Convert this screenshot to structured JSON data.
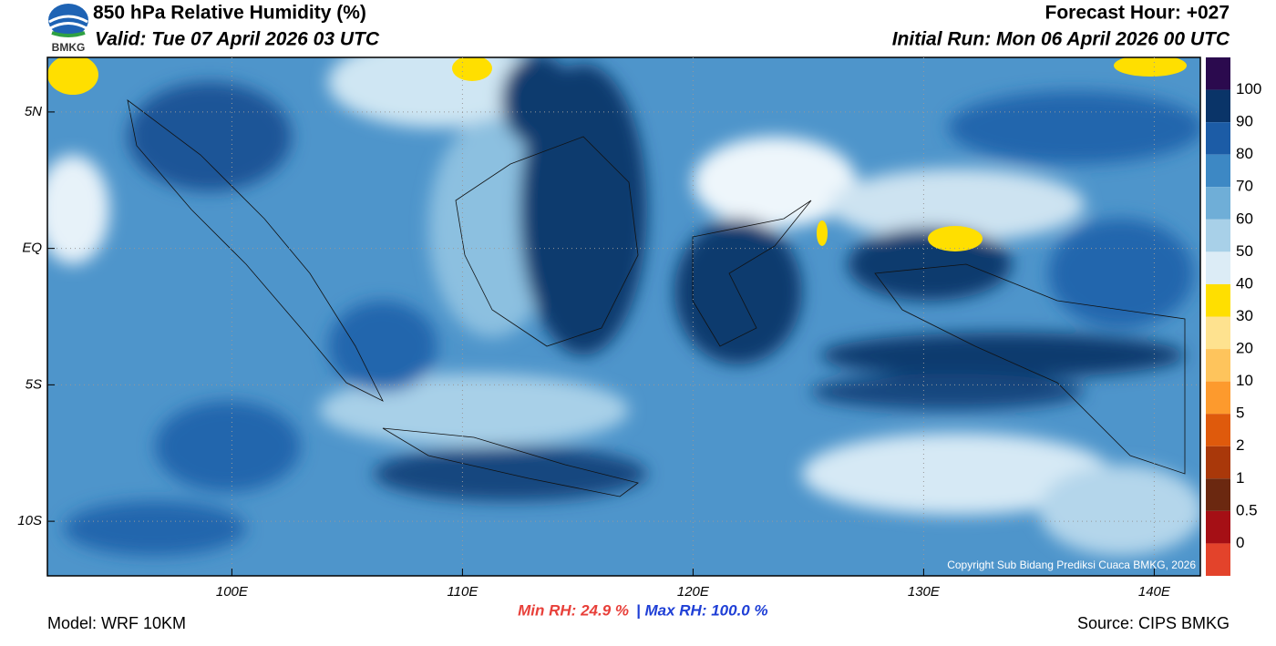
{
  "header": {
    "title": "850 hPa Relative Humidity (%)",
    "valid": "Valid: Tue 07 April 2026 03 UTC",
    "forecast_hour": "Forecast Hour: +027",
    "initial_run": "Initial Run: Mon 06 April 2026 00 UTC",
    "logo": "BMKG"
  },
  "map": {
    "xlim": [
      92,
      142
    ],
    "ylim": [
      -12,
      7
    ],
    "xticks": [
      {
        "value": 100,
        "label": "100E"
      },
      {
        "value": 110,
        "label": "110E"
      },
      {
        "value": 120,
        "label": "120E"
      },
      {
        "value": 130,
        "label": "130E"
      },
      {
        "value": 140,
        "label": "140E"
      }
    ],
    "yticks": [
      {
        "value": 5,
        "label": "5N"
      },
      {
        "value": 0,
        "label": "EQ"
      },
      {
        "value": -5,
        "label": "5S"
      },
      {
        "value": -10,
        "label": "10S"
      }
    ],
    "grid": true,
    "copyright": "Copyright Sub Bidang Prediksi Cuaca BMKG, 2026"
  },
  "colorbar": {
    "labels": [
      100,
      90,
      80,
      70,
      60,
      50,
      40,
      30,
      20,
      10,
      5,
      2,
      1,
      0.5,
      0
    ],
    "colors": [
      "#2b0a4e",
      "#0a3468",
      "#1c5ca6",
      "#3d88c4",
      "#6faed7",
      "#a8d0e8",
      "#dcecf6",
      "#ffdf00",
      "#fee28f",
      "#fec45c",
      "#fd9a2d",
      "#df5a0c",
      "#a9380a",
      "#6b2810",
      "#a50f15",
      "#e3432b"
    ]
  },
  "footer": {
    "model": "Model: WRF 10KM",
    "source": "Source: CIPS BMKG",
    "min_rh": "Min RH:  24.9 %",
    "max_rh": "| Max RH: 100.0 %"
  }
}
